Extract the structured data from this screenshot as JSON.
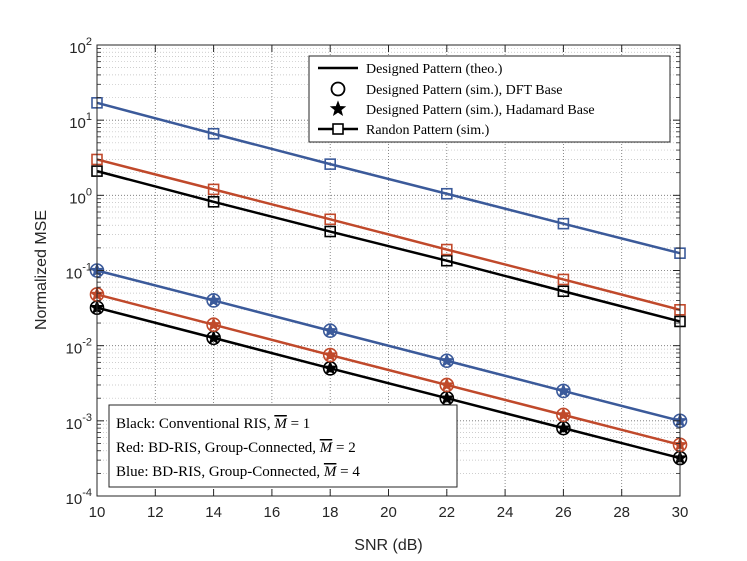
{
  "chart_data": {
    "type": "line",
    "xlabel": "SNR (dB)",
    "ylabel": "Normalized MSE",
    "xlim": [
      10,
      30
    ],
    "ylim": [
      0.0001,
      100
    ],
    "yscale": "log",
    "grid": true,
    "x_ticks": [
      "10",
      "12",
      "14",
      "16",
      "18",
      "20",
      "22",
      "24",
      "26",
      "28",
      "30"
    ],
    "y_ticks": [
      {
        "base": "10",
        "exp": "-4",
        "value": 0.0001
      },
      {
        "base": "10",
        "exp": "-3",
        "value": 0.001
      },
      {
        "base": "10",
        "exp": "-2",
        "value": 0.01
      },
      {
        "base": "10",
        "exp": "-1",
        "value": 0.1
      },
      {
        "base": "10",
        "exp": "0",
        "value": 1
      },
      {
        "base": "10",
        "exp": "1",
        "value": 10
      },
      {
        "base": "10",
        "exp": "2",
        "value": 100
      }
    ],
    "x": [
      10,
      14,
      18,
      22,
      26,
      30
    ],
    "colors": {
      "black": "#000000",
      "red": "#c0492b",
      "blue": "#3b5a9a"
    },
    "series": [
      {
        "name": "Conventional RIS, Designed Pattern",
        "color": "black",
        "marker": "circle-star",
        "values": [
          0.032,
          0.0127,
          0.005,
          0.002,
          0.0008,
          0.00032
        ]
      },
      {
        "name": "BD-RIS M=2, Designed Pattern",
        "color": "red",
        "marker": "circle-star",
        "values": [
          0.048,
          0.019,
          0.0075,
          0.003,
          0.0012,
          0.00048
        ]
      },
      {
        "name": "BD-RIS M=4, Designed Pattern",
        "color": "blue",
        "marker": "circle-star",
        "values": [
          0.1,
          0.04,
          0.0158,
          0.0063,
          0.0025,
          0.001
        ]
      },
      {
        "name": "Conventional RIS, Randon Pattern",
        "color": "black",
        "marker": "square",
        "values": [
          2.1,
          0.82,
          0.33,
          0.135,
          0.053,
          0.021
        ]
      },
      {
        "name": "BD-RIS M=2, Randon Pattern",
        "color": "red",
        "marker": "square",
        "values": [
          3.0,
          1.2,
          0.48,
          0.19,
          0.076,
          0.03
        ]
      },
      {
        "name": "BD-RIS M=4, Randon Pattern",
        "color": "blue",
        "marker": "square",
        "values": [
          17.0,
          6.6,
          2.6,
          1.05,
          0.42,
          0.17
        ]
      }
    ],
    "legend": {
      "position": "top-right",
      "entries": [
        {
          "label": "Designed Pattern (theo.)",
          "marker": "line"
        },
        {
          "label": "Designed Pattern (sim.), DFT Base",
          "marker": "circle"
        },
        {
          "label": "Designed Pattern (sim.), Hadamard Base",
          "marker": "star"
        },
        {
          "label": "Randon Pattern (sim.)",
          "marker": "line-square"
        }
      ]
    },
    "annotation": {
      "position": "bottom-left",
      "lines": [
        {
          "prefix": "Black: Conventional RIS, ",
          "m": "M",
          "eq": " = 1"
        },
        {
          "prefix": "Red: BD-RIS, Group-Connected, ",
          "m": "M",
          "eq": " = 2"
        },
        {
          "prefix": "Blue: BD-RIS, Group-Connected, ",
          "m": "M",
          "eq": " = 4"
        }
      ]
    }
  }
}
